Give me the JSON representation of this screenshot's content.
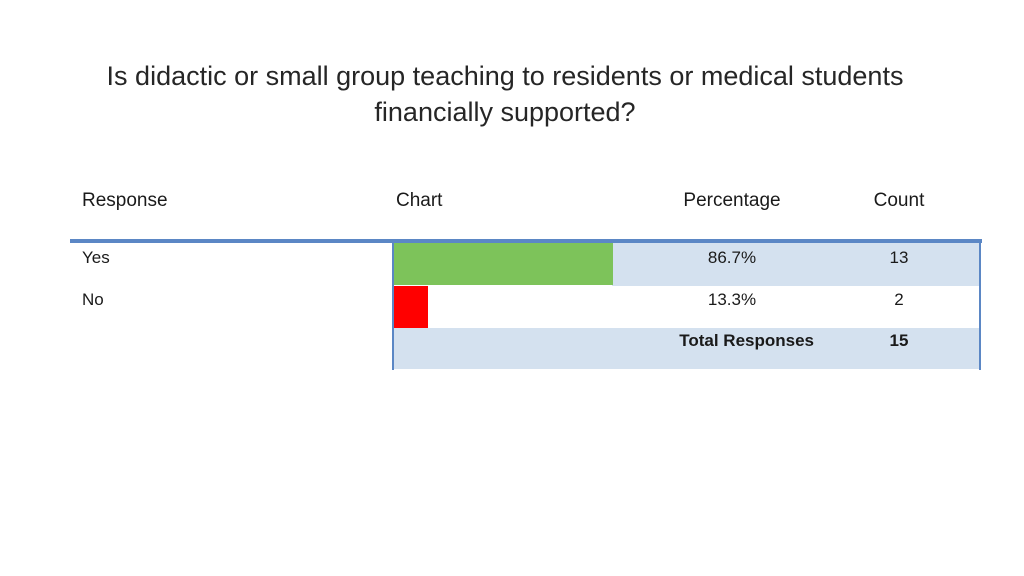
{
  "title": "Is didactic or small group teaching to residents or medical students financially supported?",
  "headers": {
    "response": "Response",
    "chart": "Chart",
    "percentage": "Percentage",
    "count": "Count"
  },
  "rows": [
    {
      "response": "Yes",
      "percentage": "86.7%",
      "count": "13",
      "fraction": 0.867,
      "color": "#7dc35a"
    },
    {
      "response": "No",
      "percentage": "13.3%",
      "count": "2",
      "fraction": 0.133,
      "color": "#ff0000"
    }
  ],
  "total": {
    "label": "Total Responses",
    "count": "15"
  },
  "colors": {
    "accent_line": "#5b87c5",
    "row_shade": "#d4e1ef",
    "yes_bar": "#7dc35a",
    "no_bar": "#ff0000"
  },
  "chart_data": {
    "type": "bar",
    "orientation": "horizontal",
    "categories": [
      "Yes",
      "No"
    ],
    "values": [
      86.7,
      13.3
    ],
    "counts": [
      13,
      2
    ],
    "total": 15,
    "title": "Is didactic or small group teaching to residents or medical students financially supported?",
    "grid": false
  }
}
